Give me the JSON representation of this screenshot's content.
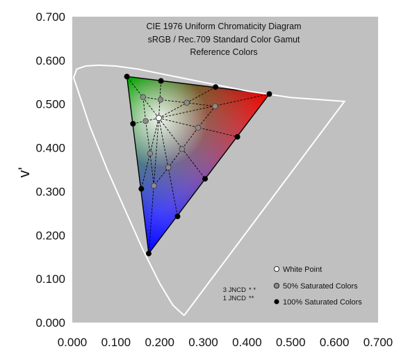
{
  "chart_data": {
    "type": "scatter",
    "title": "CIE 1976 Uniform Chromaticity Diagram",
    "subtitle": "sRGB / Rec.709 Standard Color Gamut",
    "subtitle2": "Reference Colors",
    "xlabel": "",
    "ylabel": "v'",
    "xlim": [
      0,
      0.7
    ],
    "ylim": [
      0,
      0.7
    ],
    "x_ticks": [
      "0.000",
      "0.100",
      "0.200",
      "0.300",
      "0.400",
      "0.500",
      "0.600",
      "0.700"
    ],
    "y_ticks": [
      "0.000",
      "0.100",
      "0.200",
      "0.300",
      "0.400",
      "0.500",
      "0.600",
      "0.700"
    ],
    "grid": false,
    "legend_position": "bottom-right",
    "legend": [
      {
        "label": "White Point",
        "color": "#ffffff"
      },
      {
        "label": "50% Saturated Colors",
        "color": "#8c8c8c"
      },
      {
        "label": "100% Saturated Colors",
        "color": "#000000"
      }
    ],
    "jncd_labels": [
      "3 JNCD",
      "1 JNCD"
    ],
    "colors": {
      "plot_background": "#c0c0c0",
      "spectral_locus": "#ffffff",
      "red": "#ff0000",
      "green": "#00ff00",
      "blue": "#0000ff"
    },
    "spectral_locus": [
      [
        0.256,
        0.016
      ],
      [
        0.23,
        0.04
      ],
      [
        0.2,
        0.09
      ],
      [
        0.16,
        0.17
      ],
      [
        0.12,
        0.26
      ],
      [
        0.08,
        0.35
      ],
      [
        0.04,
        0.45
      ],
      [
        0.01,
        0.54
      ],
      [
        0.003,
        0.56
      ],
      [
        0.01,
        0.58
      ],
      [
        0.03,
        0.587
      ],
      [
        0.06,
        0.589
      ],
      [
        0.1,
        0.587
      ],
      [
        0.15,
        0.58
      ],
      [
        0.2,
        0.57
      ],
      [
        0.25,
        0.56
      ],
      [
        0.3,
        0.55
      ],
      [
        0.4,
        0.53
      ],
      [
        0.5,
        0.515
      ],
      [
        0.623,
        0.506
      ],
      [
        0.256,
        0.016
      ]
    ],
    "gamut_primaries": [
      {
        "name": "Red",
        "u": 0.451,
        "v": 0.523
      },
      {
        "name": "Green",
        "u": 0.125,
        "v": 0.563
      },
      {
        "name": "Blue",
        "u": 0.175,
        "v": 0.158
      }
    ],
    "white_point": {
      "u": 0.198,
      "v": 0.468
    },
    "saturated_100": [
      {
        "u": 0.451,
        "v": 0.523
      },
      {
        "u": 0.328,
        "v": 0.539
      },
      {
        "u": 0.203,
        "v": 0.553
      },
      {
        "u": 0.125,
        "v": 0.563
      },
      {
        "u": 0.139,
        "v": 0.455
      },
      {
        "u": 0.158,
        "v": 0.306
      },
      {
        "u": 0.175,
        "v": 0.158
      },
      {
        "u": 0.241,
        "v": 0.243
      },
      {
        "u": 0.304,
        "v": 0.329
      },
      {
        "u": 0.378,
        "v": 0.425
      }
    ],
    "saturated_50": [
      {
        "u": 0.327,
        "v": 0.495
      },
      {
        "u": 0.262,
        "v": 0.503
      },
      {
        "u": 0.202,
        "v": 0.51
      },
      {
        "u": 0.162,
        "v": 0.516
      },
      {
        "u": 0.168,
        "v": 0.461
      },
      {
        "u": 0.178,
        "v": 0.387
      },
      {
        "u": 0.187,
        "v": 0.313
      },
      {
        "u": 0.22,
        "v": 0.355
      },
      {
        "u": 0.251,
        "v": 0.397
      },
      {
        "u": 0.288,
        "v": 0.446
      }
    ]
  }
}
